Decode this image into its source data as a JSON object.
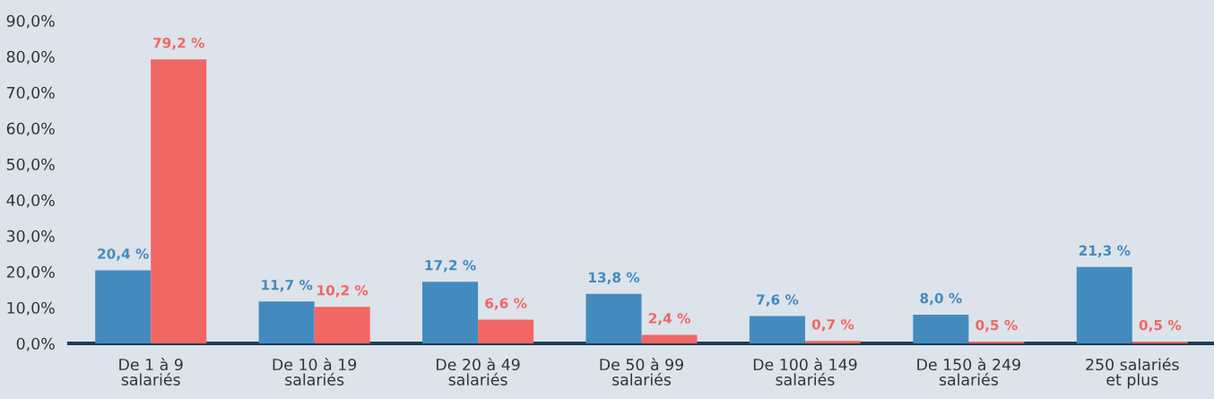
{
  "chart_data": {
    "type": "bar",
    "categories": [
      "De 1 à 9\nsalariés",
      "De 10 à 19\nsalariés",
      "De 20 à 49\nsalariés",
      "De 50 à 99\nsalariés",
      "De 100 à 149\nsalariés",
      "De 150 à 249\nsalariés",
      "250 salariés\net plus"
    ],
    "series": [
      {
        "color": "#438bbf",
        "values": [
          20.4,
          11.7,
          17.2,
          13.8,
          7.6,
          8.0,
          21.3
        ],
        "value_labels": [
          "20,4 %",
          "11,7 %",
          "17,2 %",
          "13,8 %",
          "7,6 %",
          "8,0 %",
          "21,3 %"
        ]
      },
      {
        "color": "#f26664",
        "values": [
          79.2,
          10.2,
          6.6,
          2.4,
          0.7,
          0.5,
          0.5
        ],
        "value_labels": [
          "79,2 %",
          "10,2 %",
          "6,6 %",
          "2,4 %",
          "0,7 %",
          "0,5 %",
          "0,5 %"
        ]
      }
    ],
    "ylim": [
      0,
      90
    ],
    "yticks": [
      {
        "value": 0,
        "label": "0,0%"
      },
      {
        "value": 10,
        "label": "10,0%"
      },
      {
        "value": 20,
        "label": "20,0%"
      },
      {
        "value": 30,
        "label": "30,0%"
      },
      {
        "value": 40,
        "label": "40,0%"
      },
      {
        "value": 50,
        "label": "50,0%"
      },
      {
        "value": 60,
        "label": "60,0%"
      },
      {
        "value": 70,
        "label": "70,0%"
      },
      {
        "value": 80,
        "label": "80,0%"
      },
      {
        "value": 90,
        "label": "90,0%"
      }
    ],
    "grid": false,
    "legend": false
  }
}
